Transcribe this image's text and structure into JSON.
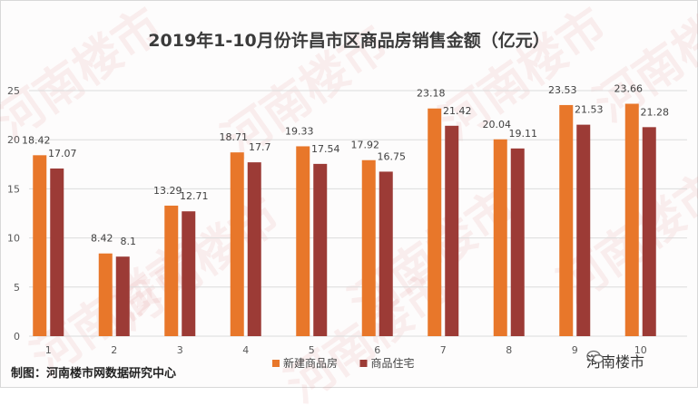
{
  "chart_data": {
    "type": "bar",
    "title": "2019年1-10月份许昌市区商品房销售金额（亿元）",
    "categories": [
      "1",
      "2",
      "3",
      "4",
      "5",
      "6",
      "7",
      "8",
      "9",
      "10"
    ],
    "series": [
      {
        "name": "新建商品房",
        "color": "#e8772a",
        "values": [
          18.42,
          8.42,
          13.29,
          18.71,
          19.33,
          17.92,
          23.18,
          20.04,
          23.53,
          23.66
        ],
        "labels": [
          "18.42",
          "8.42",
          "13.29",
          "18.71",
          "19.33",
          "17.92",
          "23.18",
          "20.04",
          "23.53",
          "23.66"
        ]
      },
      {
        "name": "商品住宅",
        "color": "#9c3b36",
        "values": [
          17.07,
          8.1,
          12.71,
          17.7,
          17.54,
          16.75,
          21.42,
          19.11,
          21.53,
          21.28
        ],
        "labels": [
          "17.07",
          "8.1",
          "12.71",
          "17.7",
          "17.54",
          "16.75",
          "21.42",
          "19.11",
          "21.53",
          "21.28"
        ]
      }
    ],
    "yticks": [
      "0",
      "5",
      "10",
      "15",
      "20",
      "25"
    ],
    "ylim": [
      0,
      25
    ],
    "grid": true,
    "legend_placement": "bottom"
  },
  "credit": "制图：河南楼市网数据研究中心",
  "logo_text": "河南楼市",
  "watermark_text": "河南楼市",
  "watermark_url": "www.hnloushi.com"
}
